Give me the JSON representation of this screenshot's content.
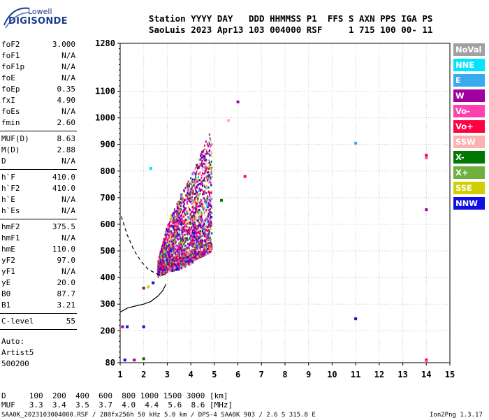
{
  "logo": {
    "line1": "Lowell",
    "line2": "DIGISONDE"
  },
  "header": {
    "labels_row": "Station YYYY DAY   DDD HHMMSS P1  FFS S AXN PPS IGA PS",
    "values_row": "SaoLuis 2023 Apr13 103 004000 RSF     1 715 100 00- 11"
  },
  "params_group1": [
    {
      "name": "foF2",
      "value": "3.000"
    },
    {
      "name": "foF1",
      "value": "N/A"
    },
    {
      "name": "foF1p",
      "value": "N/A"
    },
    {
      "name": "foE",
      "value": "N/A"
    },
    {
      "name": "foEp",
      "value": "0.35"
    },
    {
      "name": "fxI",
      "value": "4.90"
    },
    {
      "name": "foEs",
      "value": "N/A"
    },
    {
      "name": "fmin",
      "value": "2.60"
    }
  ],
  "params_group2": [
    {
      "name": "MUF(D)",
      "value": "8.63"
    },
    {
      "name": "M(D)",
      "value": "2.88"
    },
    {
      "name": "D",
      "value": "N/A"
    }
  ],
  "params_group3": [
    {
      "name": "h`F",
      "value": "410.0"
    },
    {
      "name": "h`F2",
      "value": "410.0"
    },
    {
      "name": "h`E",
      "value": "N/A"
    },
    {
      "name": "h`Es",
      "value": "N/A"
    }
  ],
  "params_group4": [
    {
      "name": "hmF2",
      "value": "375.5"
    },
    {
      "name": "hmF1",
      "value": "N/A"
    },
    {
      "name": "hmE",
      "value": "110.0"
    },
    {
      "name": "yF2",
      "value": "97.0"
    },
    {
      "name": "yF1",
      "value": "N/A"
    },
    {
      "name": "yE",
      "value": "20.0"
    },
    {
      "name": "B0",
      "value": "87.7"
    },
    {
      "name": "B1",
      "value": "3.21"
    }
  ],
  "params_group5": [
    {
      "name": "C-level",
      "value": "55"
    }
  ],
  "autoscale": {
    "line1": "Auto:",
    "line2": "Artist5",
    "line3": "500200"
  },
  "legend": [
    {
      "label": "NoVal",
      "color": "#a0a0a0"
    },
    {
      "label": "NNE",
      "color": "#00e5ff"
    },
    {
      "label": "E",
      "color": "#39a9f0"
    },
    {
      "label": "W",
      "color": "#a0009f"
    },
    {
      "label": "Vo-",
      "color": "#ff40b0"
    },
    {
      "label": "Vo+",
      "color": "#ff0040"
    },
    {
      "label": "SSW",
      "color": "#ffb0b0"
    },
    {
      "label": "X-",
      "color": "#007800"
    },
    {
      "label": "X+",
      "color": "#70b040"
    },
    {
      "label": "SSE",
      "color": "#d0d000"
    },
    {
      "label": "NNW",
      "color": "#1010e0"
    }
  ],
  "muf_table": {
    "d_label": "D",
    "d_values": "100  200  400  600  800 1000 1500 3000",
    "d_unit": "[km]",
    "muf_label": "MUF",
    "muf_values": "3.3  3.4  3.5  3.7  4.0  4.4  5.6  8.6",
    "muf_unit": "[MHz]"
  },
  "footer": {
    "file_info": "SAA0K_2023103004000.RSF / 280fx256h 50 kHz 5.0 km / DPS-4 SAA0K 903 / 2.6 S 315.8 E",
    "version": "Ion2Png 1.3.17"
  },
  "chart_data": {
    "type": "scatter",
    "xlim": [
      1,
      15
    ],
    "ylim": [
      80,
      1280
    ],
    "x_ticks": [
      1,
      2,
      3,
      4,
      5,
      6,
      7,
      8,
      9,
      10,
      11,
      12,
      13,
      14,
      15
    ],
    "y_ticks": [
      80,
      200,
      300,
      400,
      500,
      600,
      700,
      800,
      900,
      1000,
      1100,
      1280
    ],
    "x_tick_labels": [
      "1",
      "2",
      "3",
      "4",
      "5",
      "6",
      "7",
      "8",
      "9",
      "10",
      "11",
      "12",
      "13",
      "14",
      "15"
    ],
    "y_tick_labels": [
      "80",
      "200",
      "300",
      "400",
      "500",
      "600",
      "700",
      "800",
      "900",
      "1000",
      "1100",
      "1280"
    ],
    "grid": true,
    "profile_curve": [
      [
        1.0,
        270
      ],
      [
        1.3,
        285
      ],
      [
        1.6,
        292
      ],
      [
        2.0,
        300
      ],
      [
        2.3,
        310
      ],
      [
        2.6,
        330
      ],
      [
        2.8,
        350
      ],
      [
        2.95,
        375
      ]
    ],
    "profile_dashed": [
      [
        1.05,
        630
      ],
      [
        1.3,
        560
      ],
      [
        1.6,
        500
      ],
      [
        1.9,
        460
      ],
      [
        2.2,
        430
      ],
      [
        2.6,
        412
      ],
      [
        3.0,
        410
      ]
    ],
    "trace_region": {
      "x_range": [
        2.6,
        4.9
      ],
      "height_at_x": [
        [
          2.6,
          410
        ],
        [
          2.8,
          420
        ],
        [
          3.0,
          430
        ],
        [
          3.5,
          440
        ],
        [
          4.0,
          460
        ],
        [
          4.5,
          480
        ],
        [
          4.9,
          500
        ]
      ],
      "top_at_x": [
        [
          2.6,
          460
        ],
        [
          3.0,
          600
        ],
        [
          3.5,
          700
        ],
        [
          4.0,
          780
        ],
        [
          4.5,
          880
        ],
        [
          4.8,
          950
        ]
      ]
    },
    "extra_points": [
      {
        "x": 1.3,
        "y": 215,
        "c": "#1010e0"
      },
      {
        "x": 1.1,
        "y": 215,
        "c": "#a0009f"
      },
      {
        "x": 2.0,
        "y": 215,
        "c": "#1010e0"
      },
      {
        "x": 1.2,
        "y": 90,
        "c": "#1010e0"
      },
      {
        "x": 1.6,
        "y": 90,
        "c": "#a0009f"
      },
      {
        "x": 2.0,
        "y": 95,
        "c": "#007800"
      },
      {
        "x": 2.0,
        "y": 360,
        "c": "#a0009f"
      },
      {
        "x": 2.2,
        "y": 365,
        "c": "#d0d000"
      },
      {
        "x": 2.4,
        "y": 380,
        "c": "#1010e0"
      },
      {
        "x": 11.0,
        "y": 905,
        "c": "#39a9f0"
      },
      {
        "x": 11.0,
        "y": 245,
        "c": "#1010e0"
      },
      {
        "x": 14.0,
        "y": 860,
        "c": "#ff0040"
      },
      {
        "x": 14.0,
        "y": 850,
        "c": "#ff40b0"
      },
      {
        "x": 14.0,
        "y": 655,
        "c": "#a0009f"
      },
      {
        "x": 14.0,
        "y": 90,
        "c": "#ff0040"
      },
      {
        "x": 14.0,
        "y": 85,
        "c": "#ff40b0"
      },
      {
        "x": 6.0,
        "y": 1060,
        "c": "#a0009f"
      },
      {
        "x": 6.3,
        "y": 780,
        "c": "#ff0040"
      },
      {
        "x": 5.6,
        "y": 990,
        "c": "#ffb0b0"
      },
      {
        "x": 2.3,
        "y": 810,
        "c": "#00e5ff"
      },
      {
        "x": 5.3,
        "y": 690,
        "c": "#007800"
      }
    ]
  }
}
